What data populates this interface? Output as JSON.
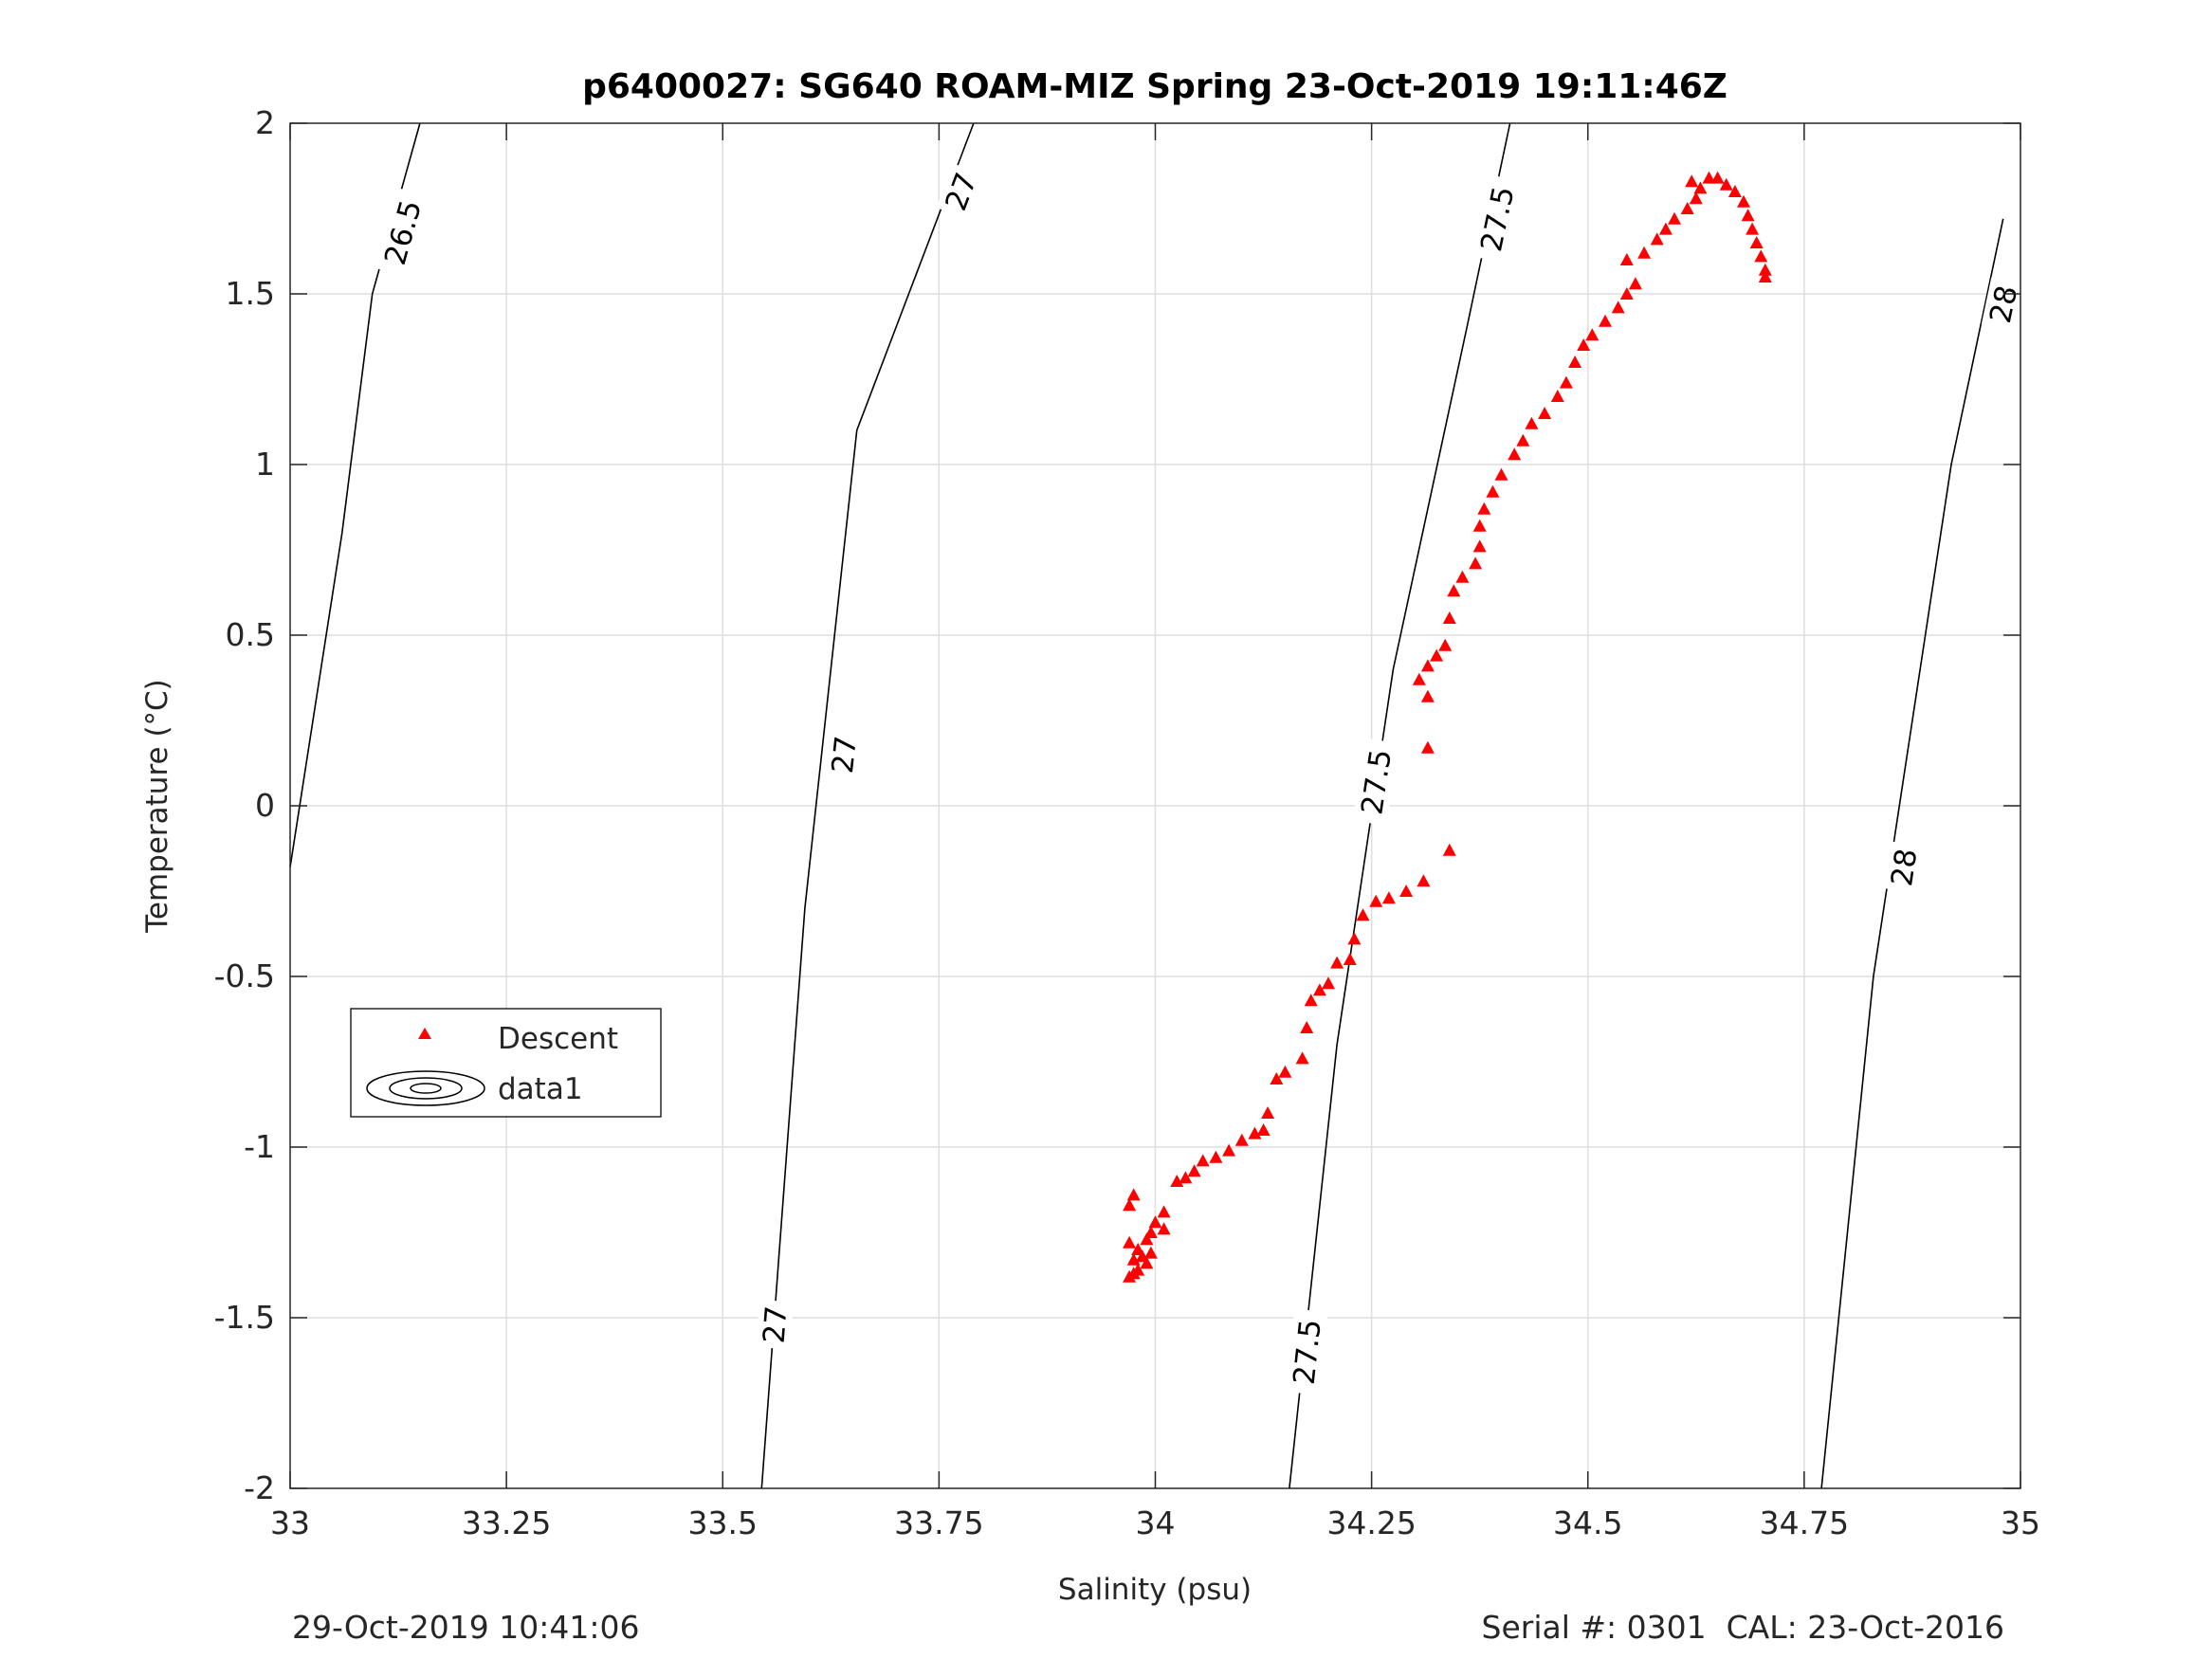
{
  "chart_data": {
    "type": "scatter",
    "title": "p6400027: SG640 ROAM-MIZ Spring 23-Oct-2019 19:11:46Z",
    "xlabel": "Salinity (psu)",
    "ylabel": "Temperature (°C)",
    "xlim": [
      33,
      35
    ],
    "ylim": [
      -2,
      2
    ],
    "xticks": [
      33,
      33.25,
      33.5,
      33.75,
      34,
      34.25,
      34.5,
      34.75,
      35
    ],
    "xtick_labels": [
      "33",
      "33.25",
      "33.5",
      "33.75",
      "34",
      "34.25",
      "34.5",
      "34.75",
      "35"
    ],
    "yticks": [
      -2,
      -1.5,
      -1,
      -0.5,
      0,
      0.5,
      1,
      1.5,
      2
    ],
    "ytick_labels": [
      "-2",
      "-1.5",
      "-1",
      "-0.5",
      "0",
      "0.5",
      "1",
      "1.5",
      "2"
    ],
    "grid": true,
    "legend": {
      "placement": "left-middle",
      "entries": [
        "Descent",
        "data1"
      ]
    },
    "marker_color": "#ff0000",
    "series": [
      {
        "name": "Descent",
        "marker": "triangle",
        "points": [
          [
            33.97,
            -1.38
          ],
          [
            33.975,
            -1.37
          ],
          [
            33.98,
            -1.36
          ],
          [
            33.975,
            -1.33
          ],
          [
            33.985,
            -1.32
          ],
          [
            33.98,
            -1.3
          ],
          [
            33.99,
            -1.34
          ],
          [
            33.995,
            -1.31
          ],
          [
            33.97,
            -1.28
          ],
          [
            33.99,
            -1.27
          ],
          [
            33.995,
            -1.25
          ],
          [
            34.0,
            -1.22
          ],
          [
            34.01,
            -1.24
          ],
          [
            33.97,
            -1.17
          ],
          [
            33.975,
            -1.14
          ],
          [
            34.01,
            -1.19
          ],
          [
            34.025,
            -1.1
          ],
          [
            34.035,
            -1.09
          ],
          [
            34.045,
            -1.07
          ],
          [
            34.055,
            -1.04
          ],
          [
            34.07,
            -1.03
          ],
          [
            34.085,
            -1.01
          ],
          [
            34.1,
            -0.98
          ],
          [
            34.115,
            -0.96
          ],
          [
            34.125,
            -0.95
          ],
          [
            34.13,
            -0.9
          ],
          [
            34.14,
            -0.8
          ],
          [
            34.15,
            -0.78
          ],
          [
            34.17,
            -0.74
          ],
          [
            34.175,
            -0.65
          ],
          [
            34.18,
            -0.57
          ],
          [
            34.19,
            -0.54
          ],
          [
            34.2,
            -0.52
          ],
          [
            34.21,
            -0.46
          ],
          [
            34.225,
            -0.45
          ],
          [
            34.23,
            -0.39
          ],
          [
            34.24,
            -0.32
          ],
          [
            34.255,
            -0.28
          ],
          [
            34.27,
            -0.27
          ],
          [
            34.29,
            -0.25
          ],
          [
            34.31,
            -0.22
          ],
          [
            34.34,
            -0.13
          ],
          [
            34.315,
            0.17
          ],
          [
            34.315,
            0.32
          ],
          [
            34.305,
            0.37
          ],
          [
            34.315,
            0.41
          ],
          [
            34.325,
            0.44
          ],
          [
            34.335,
            0.47
          ],
          [
            34.34,
            0.55
          ],
          [
            34.345,
            0.63
          ],
          [
            34.355,
            0.67
          ],
          [
            34.37,
            0.71
          ],
          [
            34.375,
            0.76
          ],
          [
            34.375,
            0.82
          ],
          [
            34.38,
            0.87
          ],
          [
            34.39,
            0.92
          ],
          [
            34.4,
            0.97
          ],
          [
            34.415,
            1.03
          ],
          [
            34.425,
            1.07
          ],
          [
            34.435,
            1.12
          ],
          [
            34.45,
            1.15
          ],
          [
            34.465,
            1.2
          ],
          [
            34.475,
            1.24
          ],
          [
            34.485,
            1.3
          ],
          [
            34.495,
            1.35
          ],
          [
            34.505,
            1.38
          ],
          [
            34.52,
            1.42
          ],
          [
            34.535,
            1.46
          ],
          [
            34.545,
            1.5
          ],
          [
            34.555,
            1.53
          ],
          [
            34.545,
            1.6
          ],
          [
            34.565,
            1.62
          ],
          [
            34.58,
            1.66
          ],
          [
            34.59,
            1.69
          ],
          [
            34.6,
            1.72
          ],
          [
            34.615,
            1.75
          ],
          [
            34.625,
            1.78
          ],
          [
            34.62,
            1.83
          ],
          [
            34.63,
            1.81
          ],
          [
            34.64,
            1.84
          ],
          [
            34.65,
            1.84
          ],
          [
            34.66,
            1.82
          ],
          [
            34.67,
            1.8
          ],
          [
            34.68,
            1.77
          ],
          [
            34.685,
            1.73
          ],
          [
            34.69,
            1.69
          ],
          [
            34.695,
            1.65
          ],
          [
            34.7,
            1.61
          ],
          [
            34.705,
            1.57
          ],
          [
            34.705,
            1.55
          ]
        ]
      }
    ],
    "contours": {
      "name": "data1",
      "levels": [
        {
          "label": "26.5",
          "points": [
            [
              33.0,
              -0.18
            ],
            [
              33.06,
              0.8
            ],
            [
              33.095,
              1.5
            ],
            [
              33.15,
              2.0
            ]
          ]
        },
        {
          "label": "27",
          "points": [
            [
              33.545,
              -2.0
            ],
            [
              33.595,
              -0.3
            ],
            [
              33.655,
              1.1
            ],
            [
              33.79,
              2.0
            ]
          ]
        },
        {
          "label": "27.5",
          "points": [
            [
              34.155,
              -2.0
            ],
            [
              34.21,
              -0.7
            ],
            [
              34.275,
              0.4
            ],
            [
              34.36,
              1.4
            ],
            [
              34.41,
              2.0
            ]
          ]
        },
        {
          "label": "28",
          "points": [
            [
              34.77,
              -2.0
            ],
            [
              34.83,
              -0.5
            ],
            [
              34.92,
              1.0
            ],
            [
              34.98,
              1.72
            ]
          ]
        }
      ],
      "label_positions": [
        {
          "label": "26.5",
          "at": [
            33.13,
            1.68
          ]
        },
        {
          "label": "27",
          "at": [
            33.775,
            1.8
          ]
        },
        {
          "label": "27",
          "at": [
            33.64,
            0.15
          ]
        },
        {
          "label": "27",
          "at": [
            33.56,
            -1.52
          ]
        },
        {
          "label": "27.5",
          "at": [
            34.395,
            1.72
          ]
        },
        {
          "label": "27.5",
          "at": [
            34.255,
            0.07
          ]
        },
        {
          "label": "27.5",
          "at": [
            34.175,
            -1.6
          ]
        },
        {
          "label": "28",
          "at": [
            34.98,
            1.47
          ]
        },
        {
          "label": "28",
          "at": [
            34.865,
            -0.18
          ]
        }
      ]
    }
  },
  "footer": {
    "left": "29-Oct-2019 10:41:06",
    "right": "Serial #: 0301  CAL: 23-Oct-2016"
  }
}
